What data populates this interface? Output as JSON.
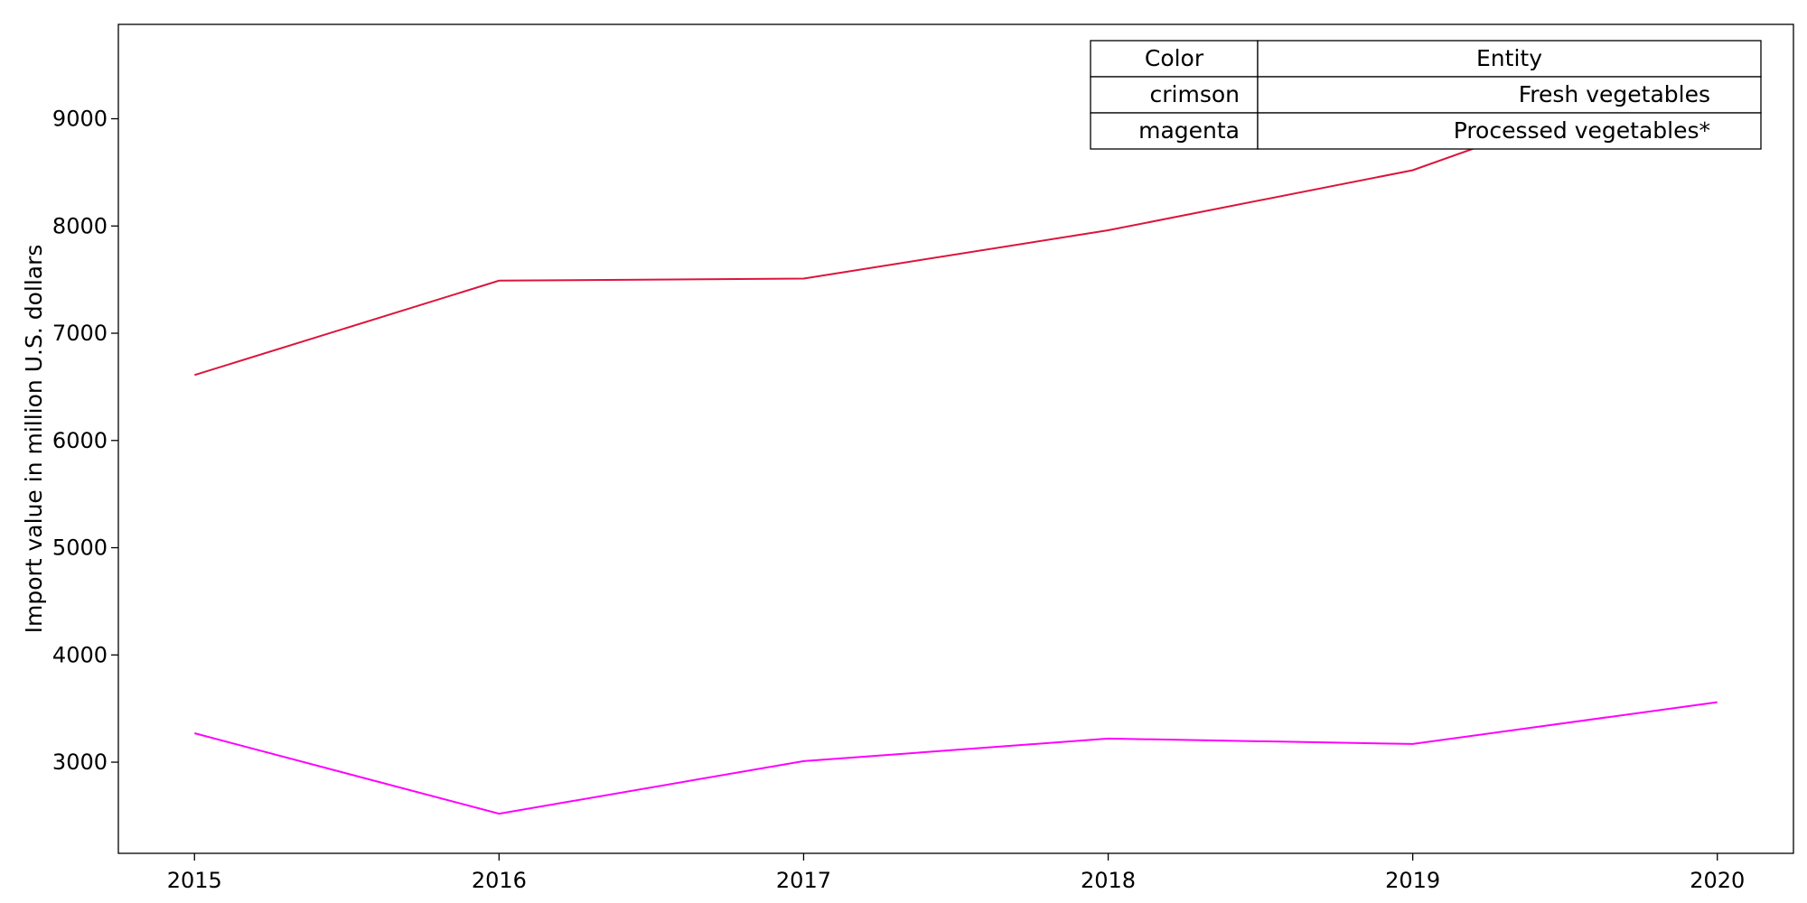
{
  "chart_data": {
    "type": "line",
    "x": [
      2015,
      2016,
      2017,
      2018,
      2019,
      2020
    ],
    "series": [
      {
        "name": "Fresh vegetables",
        "color_name": "crimson",
        "color": "#dc143c",
        "values": [
          6610,
          7490,
          7510,
          7960,
          8520,
          9530
        ]
      },
      {
        "name": "Processed vegetables*",
        "color_name": "magenta",
        "color": "#ff00ff",
        "values": [
          3270,
          2520,
          3010,
          3220,
          3170,
          3560
        ]
      }
    ],
    "title": "",
    "xlabel": "",
    "ylabel": "Import value in million U.S. dollars",
    "xlim": [
      2014.75,
      2020.25
    ],
    "ylim": [
      2150,
      9880
    ],
    "yticks": [
      3000,
      4000,
      5000,
      6000,
      7000,
      8000,
      9000
    ],
    "xticks": [
      2015,
      2016,
      2017,
      2018,
      2019,
      2020
    ],
    "grid": false,
    "legend": {
      "placement": "top-right",
      "style": "table",
      "headers": [
        "Color",
        "Entity"
      ],
      "rows": [
        [
          "crimson",
          "Fresh vegetables"
        ],
        [
          "magenta",
          "Processed vegetables*"
        ]
      ]
    }
  }
}
